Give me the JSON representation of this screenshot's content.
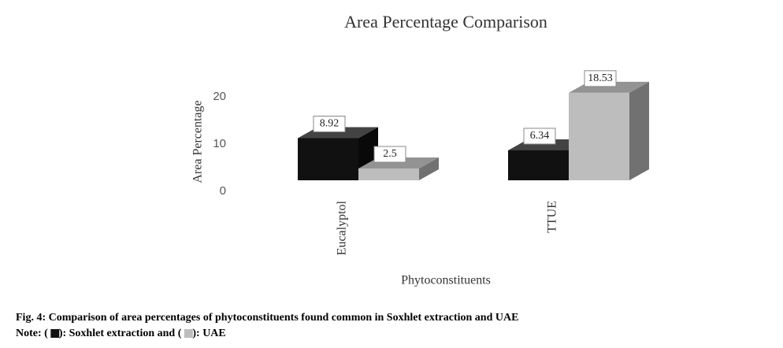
{
  "chart_data": {
    "type": "bar3d",
    "title": "Area Percentage Comparison",
    "ylabel": "Area Percentage",
    "xlabel": "Phytoconstituents",
    "categories": [
      "Eucalyptol",
      "TTUE"
    ],
    "series": [
      {
        "name": "Soxhlet extraction",
        "color": "#111111",
        "values": [
          8.92,
          6.34
        ]
      },
      {
        "name": "UAE",
        "color": "#bdbdbd",
        "values": [
          2.5,
          18.53
        ]
      }
    ],
    "ylim": [
      0,
      20
    ],
    "yticks": [
      0,
      10,
      20
    ],
    "caption": "Fig. 4: Comparison of area percentages of phytoconstituents found common in Soxhlet extraction and UAE",
    "note_parts": [
      "Note: (",
      "): ",
      " and (",
      "): "
    ]
  }
}
